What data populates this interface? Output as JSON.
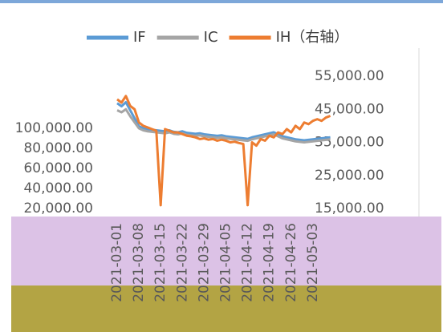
{
  "chart_data": {
    "type": "line",
    "categories": [
      "2021-03-01",
      null,
      null,
      null,
      null,
      "2021-03-08",
      null,
      null,
      null,
      null,
      "2021-03-15",
      null,
      null,
      null,
      null,
      "2021-03-22",
      null,
      null,
      null,
      null,
      "2021-03-29",
      null,
      null,
      null,
      null,
      "2021-04-05",
      null,
      null,
      null,
      null,
      "2021-04-12",
      null,
      null,
      null,
      null,
      "2021-04-19",
      null,
      null,
      null,
      null,
      "2021-04-26",
      null,
      null,
      null,
      null,
      "2021-05-03",
      null,
      null,
      null,
      null
    ],
    "series": [
      {
        "name": "IF",
        "color": "#5b9bd5",
        "values": [
          125000,
          122000,
          126000,
          118000,
          110000,
          102000,
          100000,
          99000,
          98500,
          98000,
          97500,
          97000,
          98000,
          96500,
          96000,
          97000,
          95500,
          95000,
          94500,
          95000,
          94000,
          93500,
          93000,
          92500,
          93000,
          92000,
          91500,
          91000,
          90500,
          90000,
          89500,
          91000,
          92000,
          93000,
          94000,
          95000,
          96000,
          94000,
          92000,
          91000,
          90000,
          89000,
          88500,
          88000,
          88500,
          89000,
          89500,
          90000,
          90500,
          91000
        ]
      },
      {
        "name": "IC",
        "color": "#a5a5a5",
        "values": [
          118000,
          116000,
          119000,
          112000,
          106000,
          100000,
          98000,
          97000,
          96500,
          96000,
          95500,
          95000,
          96000,
          94500,
          94000,
          95000,
          93500,
          93000,
          92500,
          93000,
          92000,
          91500,
          91000,
          90500,
          91000,
          90000,
          89500,
          89000,
          88500,
          88000,
          87500,
          89000,
          90000,
          91000,
          92000,
          93000,
          94000,
          92000,
          90000,
          89000,
          88000,
          87000,
          86500,
          86000,
          86500,
          87000,
          87500,
          88000,
          88500,
          89000
        ]
      },
      {
        "name": "IH（右轴）",
        "color": "#ed7d31",
        "axis": "y2",
        "values": [
          48000,
          47000,
          49000,
          46000,
          45000,
          41000,
          40000,
          39500,
          39000,
          38500,
          16000,
          39000,
          38500,
          38000,
          38000,
          37500,
          37000,
          36800,
          36500,
          36000,
          36200,
          35800,
          36000,
          35500,
          35800,
          35500,
          35000,
          35200,
          34800,
          34500,
          16000,
          35000,
          34000,
          36000,
          35500,
          37000,
          36500,
          38000,
          37500,
          39000,
          38000,
          40000,
          39000,
          41000,
          40500,
          41500,
          42000,
          41500,
          42500,
          43000
        ]
      }
    ],
    "ylim": [
      20000,
      140000
    ],
    "yticks": [
      {
        "value": 20000,
        "label": "20,000.00"
      },
      {
        "value": 40000,
        "label": "40,000.00"
      },
      {
        "value": 60000,
        "label": "60,000.00"
      },
      {
        "value": 80000,
        "label": "80,000.00"
      },
      {
        "value": 100000,
        "label": "100,000.00"
      }
    ],
    "y2lim": [
      15000,
      55000
    ],
    "y2ticks": [
      {
        "value": 15000,
        "label": "15,000.00"
      },
      {
        "value": 25000,
        "label": "25,000.00"
      },
      {
        "value": 35000,
        "label": "35,000.00"
      },
      {
        "value": 45000,
        "label": "45,000.00"
      },
      {
        "value": 55000,
        "label": "55,000.00"
      }
    ],
    "legend": "top"
  }
}
